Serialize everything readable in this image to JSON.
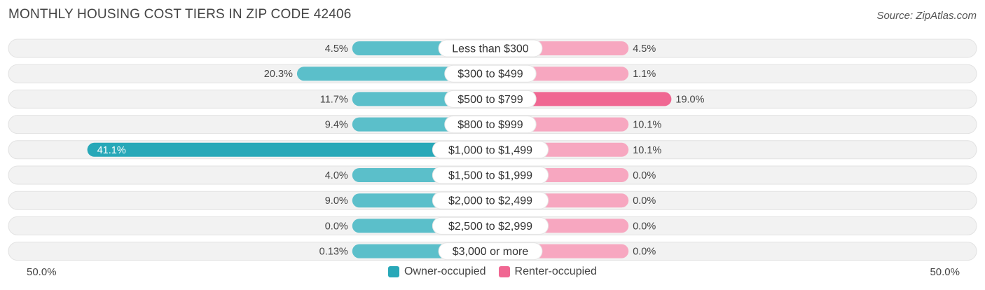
{
  "title": "MONTHLY HOUSING COST TIERS IN ZIP CODE 42406",
  "source": "Source: ZipAtlas.com",
  "colors": {
    "owner": "#5bbfca",
    "owner_strong": "#28a8b8",
    "renter": "#f7a7c0",
    "renter_strong": "#f06792",
    "track": "#f1f1f1"
  },
  "chart_data": {
    "type": "bar",
    "orientation": "horizontal-diverging",
    "title": "MONTHLY HOUSING COST TIERS IN ZIP CODE 42406",
    "categories": [
      "Less than $300",
      "$300 to $499",
      "$500 to $799",
      "$800 to $999",
      "$1,000 to $1,499",
      "$1,500 to $1,999",
      "$2,000 to $2,499",
      "$2,500 to $2,999",
      "$3,000 or more"
    ],
    "series": [
      {
        "name": "Owner-occupied",
        "values": [
          4.5,
          20.3,
          11.7,
          9.4,
          41.1,
          4.0,
          9.0,
          0.0,
          0.13
        ],
        "labels": [
          "4.5%",
          "20.3%",
          "11.7%",
          "9.4%",
          "41.1%",
          "4.0%",
          "9.0%",
          "0.0%",
          "0.13%"
        ]
      },
      {
        "name": "Renter-occupied",
        "values": [
          4.5,
          1.1,
          19.0,
          10.1,
          10.1,
          0.0,
          0.0,
          0.0,
          0.0
        ],
        "labels": [
          "4.5%",
          "1.1%",
          "19.0%",
          "10.1%",
          "10.1%",
          "0.0%",
          "0.0%",
          "0.0%",
          "0.0%"
        ]
      }
    ],
    "xlim": [
      -50,
      50
    ],
    "axis_left_label": "50.0%",
    "axis_right_label": "50.0%",
    "legend_position": "bottom-center"
  }
}
